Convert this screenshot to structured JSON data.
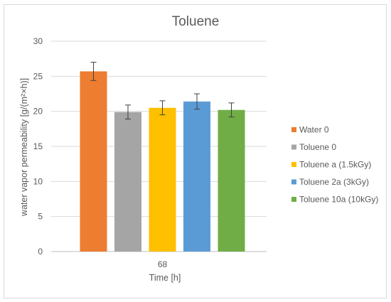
{
  "chart_data": {
    "type": "bar",
    "title": "Toluene",
    "xlabel": "Time [h]",
    "ylabel": "water vapor permeability [g/(m²×h)]",
    "categories": [
      "68"
    ],
    "ylim": [
      0,
      30
    ],
    "yticks": [
      0,
      5,
      10,
      15,
      20,
      25,
      30
    ],
    "grid": true,
    "legend_position": "right",
    "series": [
      {
        "name": "Water 0",
        "values": [
          25.7
        ],
        "error": [
          1.3
        ],
        "color": "#ED7D31"
      },
      {
        "name": "Toluene 0",
        "values": [
          19.9
        ],
        "error": [
          1.0
        ],
        "color": "#A5A5A5"
      },
      {
        "name": "Toluene a (1.5kGy)",
        "values": [
          20.5
        ],
        "error": [
          1.0
        ],
        "color": "#FFC000"
      },
      {
        "name": "Toluene 2a (3kGy)",
        "values": [
          21.4
        ],
        "error": [
          1.1
        ],
        "color": "#5B9BD5"
      },
      {
        "name": "Toluene 10a (10kGy)",
        "values": [
          20.2
        ],
        "error": [
          1.0
        ],
        "color": "#70AD47"
      }
    ]
  }
}
